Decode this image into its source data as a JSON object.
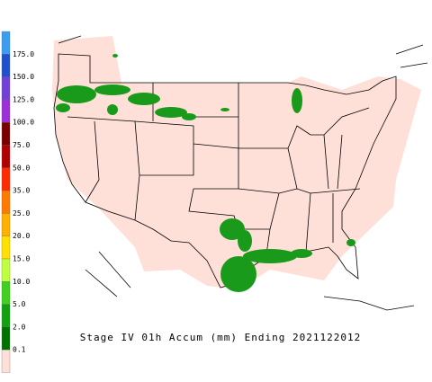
{
  "caption": "Stage IV 01h Accum (mm) Ending 2021122012",
  "legend": {
    "labels": [
      "175.0",
      "150.0",
      "125.0",
      "100.0",
      "75.0",
      "50.0",
      "35.0",
      "25.0",
      "20.0",
      "15.0",
      "10.0",
      "5.0",
      "2.0",
      "0.1"
    ]
  }
}
